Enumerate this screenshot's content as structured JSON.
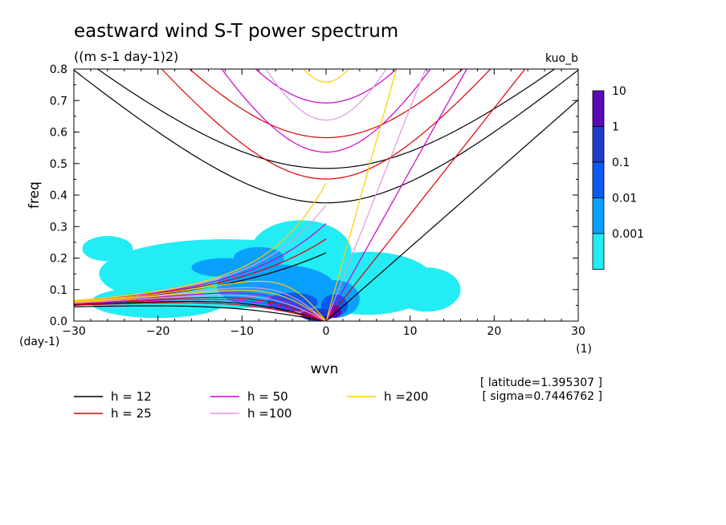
{
  "chart_data": {
    "type": "heatmap",
    "title": "eastward wind S-T power spectrum",
    "subtitle": "((m s-1 day-1)2)",
    "case_label": "kuo_b",
    "xlabel": "wvn",
    "ylabel": "freq",
    "x_unit": "(1)",
    "y_unit": "(day-1)",
    "xlim": [
      -30,
      30
    ],
    "ylim": [
      0,
      0.8
    ],
    "x_ticks": [
      -30,
      -20,
      -10,
      0,
      10,
      20,
      30
    ],
    "y_ticks": [
      0.0,
      0.1,
      0.2,
      0.3,
      0.4,
      0.5,
      0.6,
      0.7,
      0.8
    ],
    "colorbar": {
      "levels": [
        "10",
        "1",
        "0.1",
        "0.01",
        "0.001"
      ],
      "colors": [
        "#5a0ab4",
        "#1e3cc8",
        "#0a5af0",
        "#0aa0ff",
        "#22ecf4"
      ]
    },
    "info": [
      "[ latitude=1.395307 ]",
      "[ sigma=0.7446762 ]"
    ],
    "dispersion_curves": [
      {
        "label": "h = 12",
        "h": 12,
        "color": "#000000"
      },
      {
        "label": "h = 25",
        "h": 25,
        "color": "#dd0000"
      },
      {
        "label": "h = 50",
        "h": 50,
        "color": "#cc00cc"
      },
      {
        "label": "h =100",
        "h": 100,
        "color": "#dd99dd"
      },
      {
        "label": "h =200",
        "h": 200,
        "color": "#ffcc00"
      }
    ],
    "spectrum_blobs": [
      {
        "x": -12,
        "y": 0.15,
        "rx": 15,
        "ry": 0.11,
        "level": 0
      },
      {
        "x": -20,
        "y": 0.06,
        "rx": 8,
        "ry": 0.05,
        "level": 0
      },
      {
        "x": -3,
        "y": 0.22,
        "rx": 6,
        "ry": 0.1,
        "level": 0
      },
      {
        "x": 5,
        "y": 0.12,
        "rx": 8,
        "ry": 0.1,
        "level": 0
      },
      {
        "x": 12,
        "y": 0.1,
        "rx": 4,
        "ry": 0.07,
        "level": 0
      },
      {
        "x": -26,
        "y": 0.23,
        "rx": 3,
        "ry": 0.04,
        "level": 0
      },
      {
        "x": -6,
        "y": 0.11,
        "rx": 7,
        "ry": 0.07,
        "level": 1
      },
      {
        "x": 1,
        "y": 0.07,
        "rx": 3,
        "ry": 0.06,
        "level": 1
      },
      {
        "x": -12,
        "y": 0.17,
        "rx": 4,
        "ry": 0.03,
        "level": 1
      },
      {
        "x": -8,
        "y": 0.2,
        "rx": 3,
        "ry": 0.035,
        "level": 1
      },
      {
        "x": -4,
        "y": 0.06,
        "rx": 3,
        "ry": 0.03,
        "level": 2
      },
      {
        "x": 1,
        "y": 0.05,
        "rx": 1.6,
        "ry": 0.035,
        "level": 2
      },
      {
        "x": -1,
        "y": 0.02,
        "rx": 2,
        "ry": 0.02,
        "level": 3
      },
      {
        "x": 1,
        "y": 0.03,
        "rx": 0.8,
        "ry": 0.02,
        "level": 4
      }
    ]
  }
}
